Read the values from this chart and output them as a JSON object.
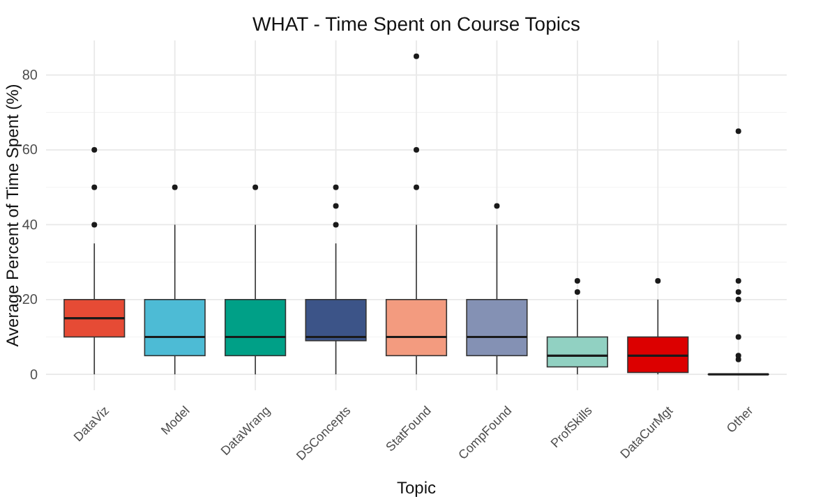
{
  "chart_data": {
    "type": "box",
    "title": "WHAT - Time Spent on Course Topics",
    "xlabel": "Topic",
    "ylabel": "Average Percent of Time Spent (%)",
    "categories": [
      "DataViz",
      "Model",
      "DataWrang",
      "DSConcepts",
      "StatFound",
      "CompFound",
      "ProfSkills",
      "DataCurMgt",
      "Other"
    ],
    "colors": [
      "#e64b35",
      "#4dbbd5",
      "#00a087",
      "#3c5488",
      "#f39b7f",
      "#8491b4",
      "#91d1c2",
      "#dc0000",
      "#7e6148"
    ],
    "boxes": [
      {
        "low": 0,
        "q1": 10,
        "median": 15,
        "q3": 20,
        "high": 35,
        "outliers": [
          40,
          50,
          60
        ]
      },
      {
        "low": 0,
        "q1": 5,
        "median": 10,
        "q3": 20,
        "high": 40,
        "outliers": [
          50
        ]
      },
      {
        "low": 0,
        "q1": 5,
        "median": 10,
        "q3": 20,
        "high": 40,
        "outliers": [
          50
        ]
      },
      {
        "low": 0,
        "q1": 9,
        "median": 10,
        "q3": 20,
        "high": 35,
        "outliers": [
          40,
          45,
          50
        ]
      },
      {
        "low": 0,
        "q1": 5,
        "median": 10,
        "q3": 20,
        "high": 40,
        "outliers": [
          50,
          60,
          85
        ]
      },
      {
        "low": 0,
        "q1": 5,
        "median": 10,
        "q3": 20,
        "high": 40,
        "outliers": [
          45
        ]
      },
      {
        "low": 0,
        "q1": 2,
        "median": 5,
        "q3": 10,
        "high": 20,
        "outliers": [
          22,
          25
        ]
      },
      {
        "low": 0,
        "q1": 0.5,
        "median": 5,
        "q3": 10,
        "high": 20,
        "outliers": [
          25
        ]
      },
      {
        "low": 0,
        "q1": 0,
        "median": 0,
        "q3": 0,
        "high": 0,
        "outliers": [
          4,
          5,
          10,
          20,
          22,
          25,
          65
        ]
      }
    ],
    "ylim": [
      -4.25,
      89.25
    ],
    "yticks": [
      0,
      {
        "value": 10,
        "label": null
      },
      20,
      {
        "value": 30,
        "label": null
      },
      40,
      {
        "value": 50,
        "label": null
      },
      60,
      {
        "value": 70,
        "label": null
      },
      80
    ],
    "grid": true
  }
}
